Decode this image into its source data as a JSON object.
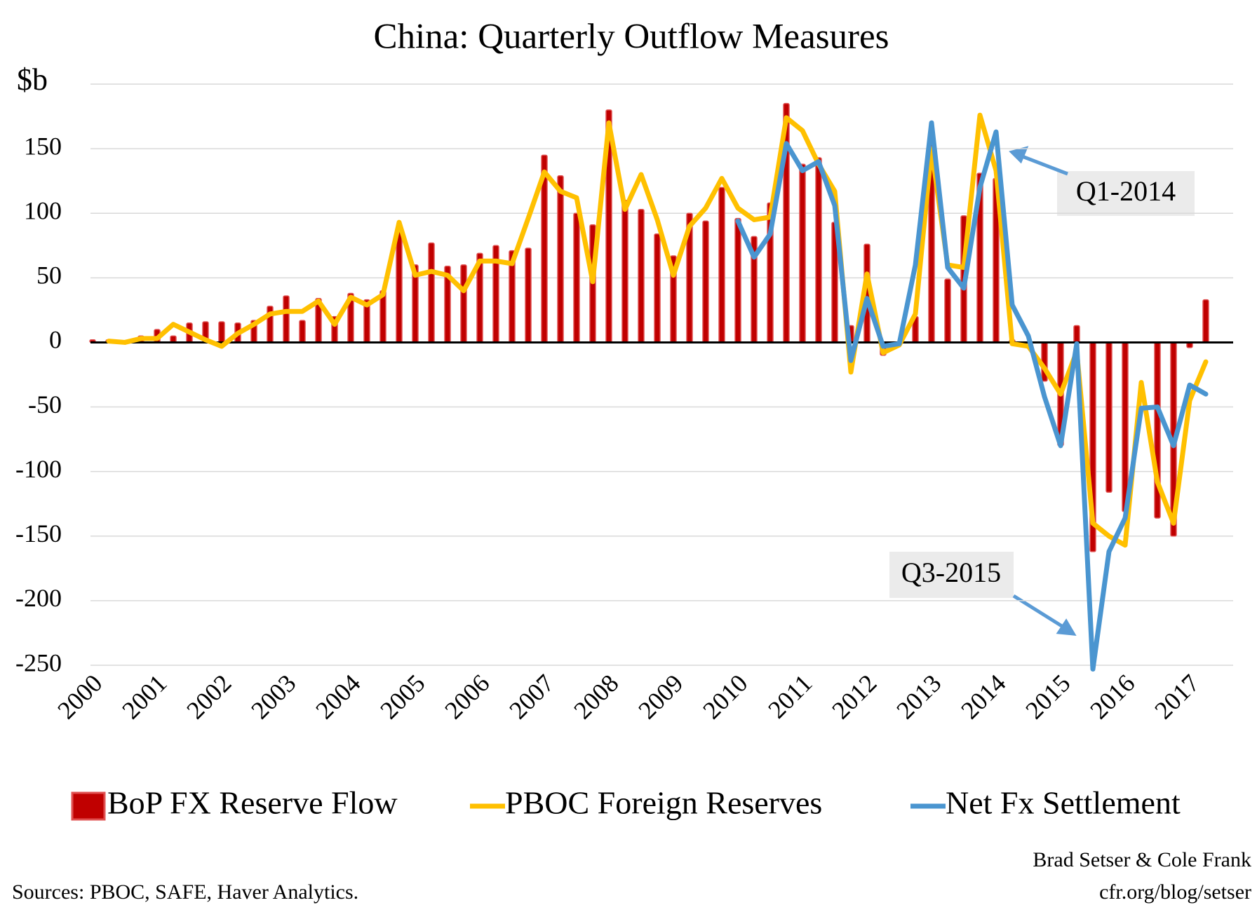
{
  "chart_data": {
    "type": "bar",
    "title": "China: Quarterly Outflow Measures",
    "y_axis_label": "$b",
    "categories": [
      "2000",
      null,
      null,
      null,
      "2001",
      null,
      null,
      null,
      "2002",
      null,
      null,
      null,
      "2003",
      null,
      null,
      null,
      "2004",
      null,
      null,
      null,
      "2005",
      null,
      null,
      null,
      "2006",
      null,
      null,
      null,
      "2007",
      null,
      null,
      null,
      "2008",
      null,
      null,
      null,
      "2009",
      null,
      null,
      null,
      "2010",
      null,
      null,
      null,
      "2011",
      null,
      null,
      null,
      "2012",
      null,
      null,
      null,
      "2013",
      null,
      null,
      null,
      "2014",
      null,
      null,
      null,
      "2015",
      null,
      null,
      null,
      "2016",
      null,
      null,
      null,
      "2017",
      null
    ],
    "series": [
      {
        "name": "BoP FX Reserve Flow",
        "type": "bar",
        "color": "#c00000",
        "values": [
          2,
          2,
          1,
          5,
          10,
          5,
          15,
          16,
          16,
          15,
          17,
          28,
          36,
          17,
          34,
          20,
          38,
          33,
          40,
          90,
          60,
          77,
          59,
          60,
          69,
          75,
          71,
          73,
          145,
          129,
          100,
          91,
          180,
          110,
          103,
          84,
          67,
          100,
          94,
          120,
          96,
          82,
          108,
          185,
          138,
          143,
          93,
          13,
          76,
          -10,
          0,
          20,
          157,
          49,
          98,
          131,
          127,
          2,
          0,
          -30,
          -80,
          13,
          -162,
          -116,
          -131,
          0,
          -136,
          -150,
          -4,
          33
        ]
      },
      {
        "name": "PBOC Foreign Reserves",
        "type": "line",
        "color": "#ffc000",
        "values": [
          null,
          1,
          0,
          3,
          3,
          14,
          8,
          2,
          -3,
          7,
          14,
          22,
          24,
          24,
          32,
          14,
          35,
          29,
          37,
          93,
          52,
          55,
          52,
          40,
          63,
          63,
          61,
          96,
          132,
          117,
          112,
          47,
          170,
          103,
          130,
          95,
          52,
          90,
          104,
          127,
          104,
          95,
          97,
          174,
          164,
          138,
          117,
          -23,
          53,
          -8,
          -2,
          22,
          150,
          60,
          58,
          176,
          133,
          -1,
          -3,
          -20,
          -40,
          -7,
          -140,
          -150,
          -157,
          -31,
          -108,
          -140,
          -45,
          -15
        ]
      },
      {
        "name": "Net Fx Settlement",
        "type": "line",
        "color": "#4a95d0",
        "values": [
          null,
          null,
          null,
          null,
          null,
          null,
          null,
          null,
          null,
          null,
          null,
          null,
          null,
          null,
          null,
          null,
          null,
          null,
          null,
          null,
          null,
          null,
          null,
          null,
          null,
          null,
          null,
          null,
          null,
          null,
          null,
          null,
          null,
          null,
          null,
          null,
          null,
          null,
          null,
          null,
          94,
          66,
          84,
          154,
          133,
          140,
          106,
          -14,
          34,
          -3,
          -1,
          60,
          170,
          58,
          42,
          120,
          163,
          29,
          5,
          -42,
          -80,
          -1,
          -253,
          -162,
          -136,
          -51,
          -50,
          -80,
          -33,
          -40
        ]
      }
    ],
    "ylim": [
      -250,
      200
    ],
    "yticks": [
      -250,
      -200,
      -150,
      -100,
      -50,
      0,
      50,
      100,
      150
    ],
    "grid": true,
    "annotations": [
      "Q1-2014",
      "Q3-2015"
    ],
    "source": "Sources: PBOC, SAFE, Haver Analytics.",
    "credits": [
      "Brad Setser & Cole Frank",
      "cfr.org/blog/setser"
    ]
  }
}
